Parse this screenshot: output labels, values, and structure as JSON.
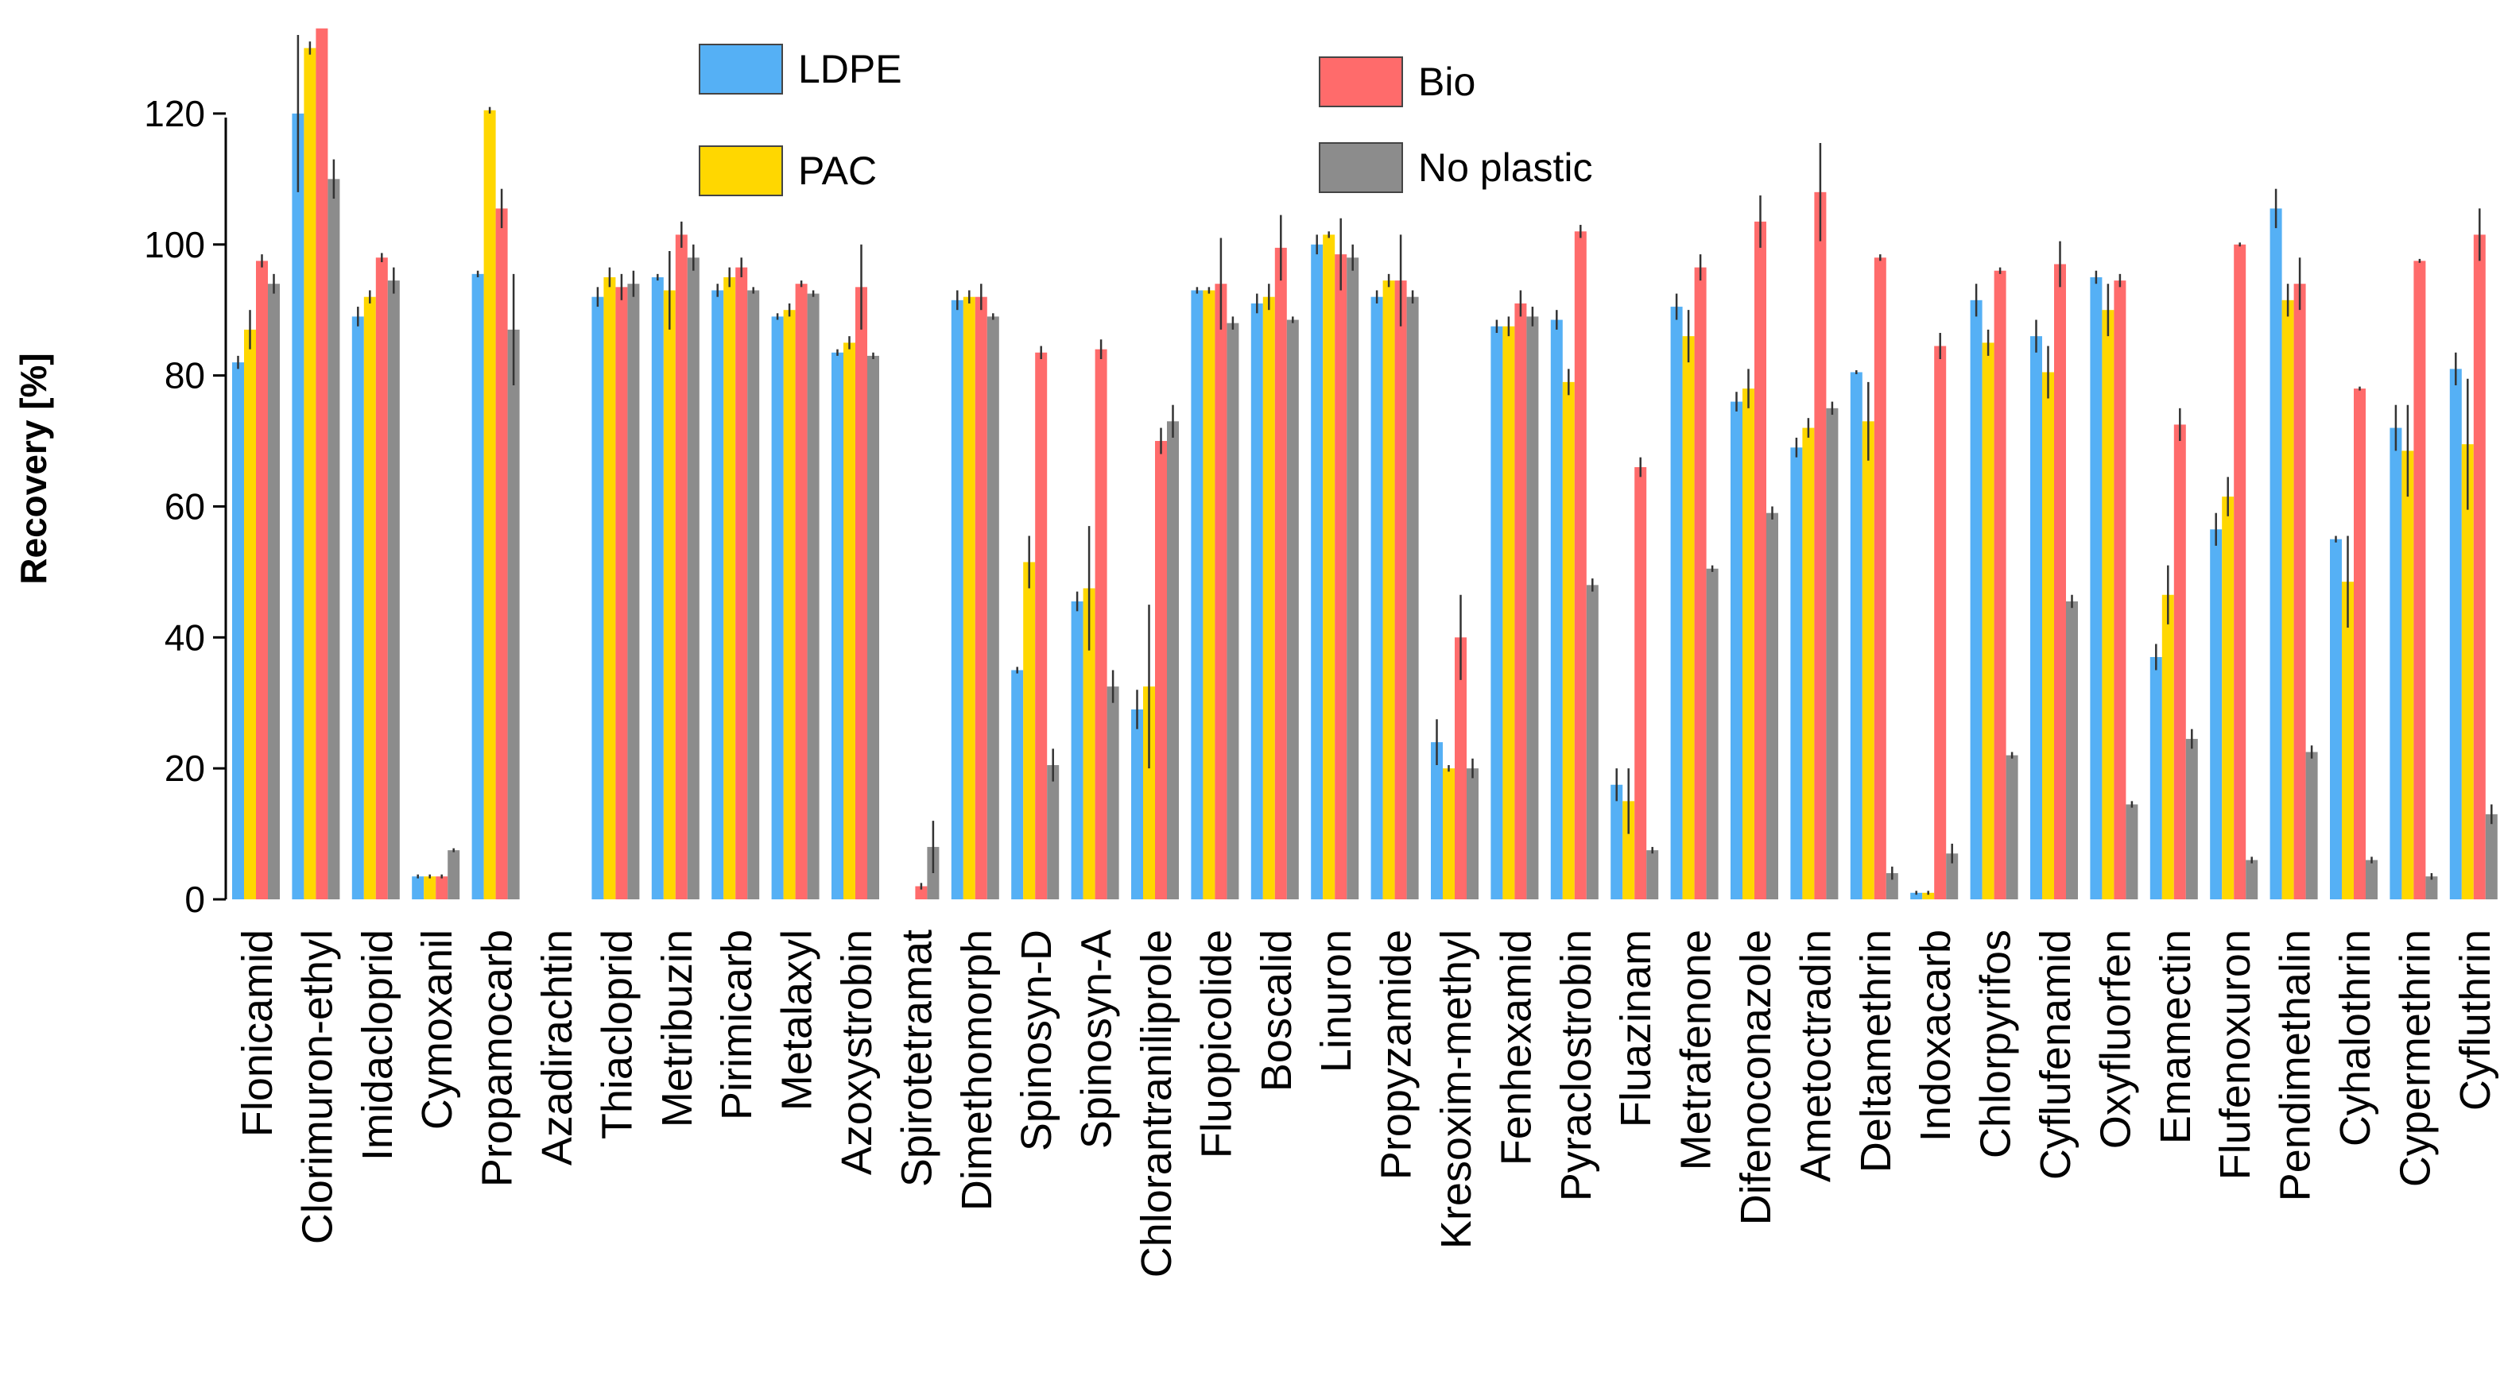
{
  "chart_data": {
    "type": "bar",
    "title": "",
    "xlabel": "",
    "ylabel": "Recovery [%]",
    "ylim": [
      0,
      132
    ],
    "yticks": [
      0,
      20,
      40,
      60,
      80,
      100,
      120
    ],
    "grid": false,
    "legend_position": "top",
    "error_bars": true,
    "categories": [
      "Flonicamid",
      "Clorimuron-ethyl",
      "Imidacloprid",
      "Cymoxanil",
      "Propamocarb",
      "Azadirachtin",
      "Thiacloprid",
      "Metribuzin",
      "Pirimicarb",
      "Metalaxyl",
      "Azoxystrobin",
      "Spirotetramat",
      "Dimethomorph",
      "Spinosyn-D",
      "Spinosyn-A",
      "Chlorantraniliprole",
      "Fluopicolide",
      "Boscalid",
      "Linuron",
      "Propyzamide",
      "Kresoxim-methyl",
      "Fenhexamid",
      "Pyraclostrobin",
      "Fluazinam",
      "Metrafenone",
      "Difenoconazole",
      "Ametoctradin",
      "Deltamethrin",
      "Indoxacarb",
      "Chlorpyrifos",
      "Cyflufenamid",
      "Oxyfluorfen",
      "Emamectin",
      "Flufenoxuron",
      "Pendimethalin",
      "Cyhalothrin",
      "Cypermethrin",
      "Cyfluthrin"
    ],
    "series": [
      {
        "name": "LDPE",
        "color": "#55B0F5",
        "values": [
          82,
          120,
          89,
          3.5,
          95.5,
          0,
          92,
          95,
          93,
          89,
          83.5,
          0,
          91.5,
          35,
          45.5,
          29,
          93,
          91,
          100,
          92,
          24,
          87.5,
          88.5,
          17.5,
          90.5,
          76,
          69,
          80.5,
          1,
          91.5,
          86,
          95,
          37,
          56.5,
          105.5,
          55,
          72,
          81
        ],
        "errors": [
          1,
          12,
          1.5,
          0.3,
          0.5,
          0,
          1.5,
          0.5,
          1,
          0.5,
          0.5,
          0,
          1.5,
          0.5,
          1.5,
          3,
          0.5,
          1.5,
          1.5,
          1,
          3.5,
          1,
          1.5,
          2.5,
          2,
          1.5,
          1.5,
          0.3,
          0.3,
          2.5,
          2.5,
          1,
          2,
          2.5,
          3,
          0.5,
          3.5,
          2.5
        ]
      },
      {
        "name": "PAC",
        "color": "#FFD700",
        "values": [
          87,
          130,
          92,
          3.5,
          120.5,
          0,
          95,
          93,
          95,
          90,
          85,
          0,
          92,
          51.5,
          47.5,
          32.5,
          93,
          92,
          101.5,
          94.5,
          20,
          87.5,
          79,
          15,
          86,
          78,
          72,
          73,
          1,
          85,
          80.5,
          90,
          46.5,
          61.5,
          91.5,
          48.5,
          68.5,
          69.5
        ],
        "errors": [
          3,
          1,
          1,
          0.3,
          0.5,
          0,
          1.5,
          6,
          1.5,
          1,
          1,
          0,
          1,
          4,
          9.5,
          12.5,
          0.5,
          2,
          0.5,
          1,
          0.5,
          1.5,
          2,
          5,
          4,
          3,
          1.5,
          6,
          0.3,
          2,
          4,
          4,
          4.5,
          3,
          2.5,
          7,
          7,
          10
        ]
      },
      {
        "name": "Bio",
        "color": "#FF6B6B",
        "values": [
          97.5,
          133,
          98,
          3.5,
          105.5,
          0,
          93.5,
          101.5,
          96.5,
          94,
          93.5,
          2,
          92,
          83.5,
          84,
          70,
          94,
          99.5,
          98.5,
          94.5,
          40,
          91,
          102,
          66,
          96.5,
          103.5,
          108,
          98,
          84.5,
          96,
          97,
          94.5,
          72.5,
          100,
          94,
          78,
          97.5,
          101.5
        ],
        "errors": [
          1,
          1,
          0.7,
          0.3,
          3,
          0,
          2,
          2,
          1.5,
          0.5,
          6.5,
          0.5,
          2,
          1,
          1.5,
          2,
          7,
          5,
          5.5,
          7,
          6.5,
          2,
          1,
          1.5,
          2,
          4,
          7.5,
          0.5,
          2,
          0.5,
          3.5,
          1,
          2.5,
          0.3,
          4,
          0.3,
          0.3,
          4
        ]
      },
      {
        "name": "No plastic",
        "color": "#8C8C8C",
        "values": [
          94,
          110,
          94.5,
          7.5,
          87,
          0,
          94,
          98,
          93,
          92.5,
          83,
          8,
          89,
          20.5,
          32.5,
          73,
          88,
          88.5,
          98,
          92,
          20,
          89,
          48,
          7.5,
          50.5,
          59,
          75,
          4,
          7,
          22,
          45.5,
          14.5,
          24.5,
          6,
          22.5,
          6,
          3.5,
          13
        ],
        "errors": [
          1.5,
          3,
          2,
          0.3,
          8.5,
          0,
          2,
          2,
          0.5,
          0.5,
          0.5,
          4,
          0.5,
          2.5,
          2.5,
          2.5,
          1,
          0.5,
          2,
          1,
          1.5,
          1.5,
          1,
          0.5,
          0.5,
          1,
          1,
          1,
          1.5,
          0.5,
          1,
          0.5,
          1.5,
          0.5,
          1,
          0.5,
          0.5,
          1.5
        ]
      }
    ]
  }
}
